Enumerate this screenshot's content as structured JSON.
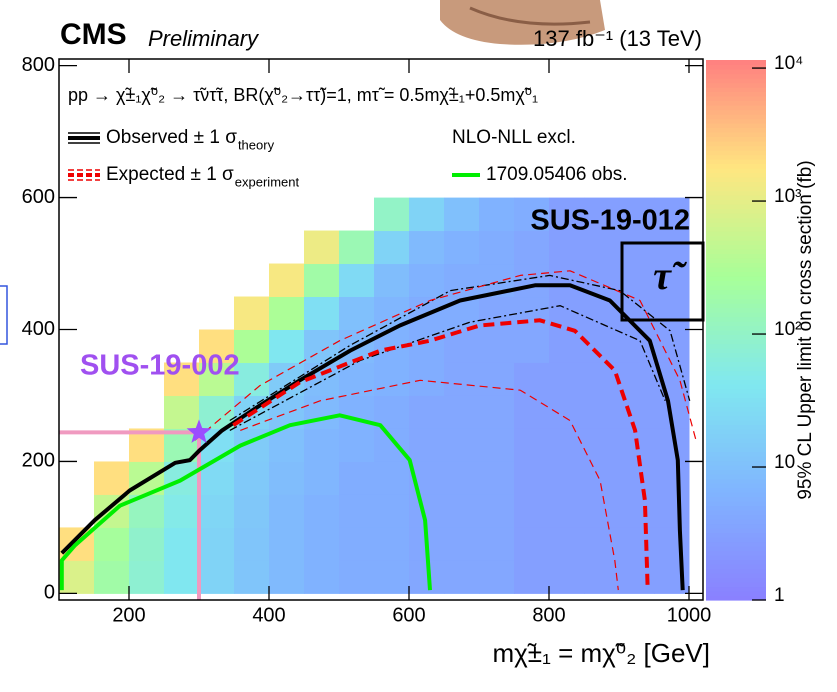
{
  "chart_data": {
    "type": "heatmap-contour",
    "title": "CMS",
    "subtitle": "Preliminary",
    "luminosity": "137 fb⁻¹ (13 TeV)",
    "process": "pp → χ̃±₁χ̃⁰₂ → τ̃ντ̃τ, BR(χ̃⁰₂→ττ̃)=1, mτ̃ = 0.5mχ̃±₁+0.5mχ̃⁰₁",
    "x_label": "mχ̃±₁ = mχ̃⁰₂ [GeV]",
    "legend_header": "NLO-NLL excl.",
    "annotations": [
      "SUS-19-012",
      "τ̃",
      "SUS-19-002"
    ],
    "xlim": [
      100,
      1020
    ],
    "ylim": [
      -10,
      810
    ],
    "xticks": [
      200,
      400,
      600,
      800,
      1000
    ],
    "yticks": [
      0,
      200,
      400,
      600,
      800
    ],
    "colorbar": {
      "label": "95% CL Upper limit on cross section (fb)",
      "log": true,
      "lim": [
        1,
        11500
      ],
      "ticks": [
        {
          "value": 1,
          "label": "1"
        },
        {
          "value": 10,
          "label": "10"
        },
        {
          "value": 100,
          "label": "10²"
        },
        {
          "value": 1000,
          "label": "10³"
        },
        {
          "value": 10000,
          "label": "10⁴"
        }
      ],
      "colors": [
        "#8a80ff",
        "#80b4ff",
        "#80e8f0",
        "#a8ff98",
        "#ffe680",
        "#ff8080"
      ]
    },
    "heatmap": {
      "x": [
        125,
        175,
        225,
        275,
        325,
        375,
        425,
        475,
        525,
        575,
        625,
        675,
        725,
        775,
        825,
        875,
        925,
        975
      ],
      "y": [
        25,
        75,
        125,
        175,
        225,
        275,
        325,
        375,
        425,
        475,
        525,
        575
      ],
      "z": [
        [
          800,
          200,
          80,
          40,
          20,
          12,
          8,
          6,
          5,
          5,
          4,
          4,
          4,
          3,
          3,
          3,
          3,
          3
        ],
        [
          2000,
          250,
          90,
          40,
          20,
          12,
          8,
          6,
          5,
          5,
          4,
          4,
          4,
          3,
          3,
          3,
          3,
          3
        ],
        [
          null,
          500,
          120,
          50,
          22,
          13,
          8,
          6,
          5,
          5,
          4,
          4,
          4,
          3,
          3,
          3,
          3,
          3
        ],
        [
          null,
          2000,
          400,
          60,
          25,
          14,
          9,
          7,
          5,
          5,
          4,
          4,
          4,
          3,
          3,
          3,
          3,
          3
        ],
        [
          null,
          null,
          2000,
          150,
          30,
          15,
          10,
          7,
          6,
          5,
          4,
          4,
          4,
          3,
          3,
          3,
          3,
          3
        ],
        [
          null,
          null,
          null,
          500,
          80,
          20,
          12,
          8,
          6,
          5,
          4,
          4,
          4,
          3,
          3,
          3,
          3,
          3
        ],
        [
          null,
          null,
          null,
          2000,
          400,
          60,
          15,
          9,
          7,
          6,
          5,
          4,
          4,
          3,
          3,
          3,
          3,
          3
        ],
        [
          null,
          null,
          null,
          null,
          2000,
          300,
          40,
          12,
          8,
          6,
          5,
          4,
          4,
          4,
          3,
          3,
          3,
          3
        ],
        [
          null,
          null,
          null,
          null,
          null,
          1500,
          300,
          30,
          10,
          7,
          5,
          5,
          4,
          4,
          3,
          3,
          3,
          3
        ],
        [
          null,
          null,
          null,
          null,
          null,
          null,
          1500,
          200,
          25,
          9,
          6,
          5,
          5,
          4,
          3,
          3,
          3,
          3
        ],
        [
          null,
          null,
          null,
          null,
          null,
          null,
          null,
          1200,
          150,
          20,
          8,
          6,
          5,
          4,
          3,
          3,
          3,
          3
        ],
        [
          null,
          null,
          null,
          null,
          null,
          null,
          null,
          null,
          null,
          100,
          20,
          10,
          6,
          5,
          3,
          3,
          3,
          3
        ]
      ]
    },
    "series": [
      {
        "name": "Observed ± 1 σ",
        "name_sub": "theory",
        "color": "#000000",
        "width": 4,
        "dash": "none",
        "x": [
          104,
          151,
          201,
          266,
          287,
          301,
          333,
          387,
          444,
          516,
          587,
          673,
          780,
          830,
          887,
          944,
          970,
          984,
          987,
          991
        ],
        "y": [
          61,
          111,
          156,
          198,
          202,
          217,
          247,
          285,
          323,
          368,
          406,
          444,
          467,
          467,
          444,
          383,
          292,
          202,
          95,
          5
        ]
      },
      {
        "color": "#000000",
        "width": 1.3,
        "dash": "8,3,2,3",
        "x": [
          344,
          516,
          659,
          801,
          901,
          973,
          1001
        ],
        "y": [
          262,
          376,
          459,
          482,
          459,
          398,
          292
        ]
      },
      {
        "color": "#000000",
        "width": 1.3,
        "dash": "8,3,2,3",
        "x": [
          344,
          530,
          687,
          816,
          930,
          966
        ],
        "y": [
          247,
          353,
          411,
          436,
          383,
          292
        ]
      },
      {
        "name": "Expected ± 1 σ",
        "name_sub": "experiment",
        "color": "#ee0000",
        "width": 4,
        "dash": "11,6",
        "x": [
          349,
          444,
          559,
          630,
          701,
          787,
          837,
          894,
          923,
          937,
          941
        ],
        "y": [
          255,
          320,
          368,
          383,
          406,
          414,
          398,
          338,
          247,
          141,
          5
        ]
      },
      {
        "color": "#ee0000",
        "width": 1.2,
        "dash": "8,5",
        "x": [
          294,
          387,
          501,
          630,
          759,
          830,
          930,
          987,
          1010
        ],
        "y": [
          232,
          315,
          383,
          444,
          482,
          489,
          444,
          323,
          232
        ]
      },
      {
        "color": "#ee0000",
        "width": 1.2,
        "dash": "8,5",
        "x": [
          359,
          473,
          616,
          759,
          830,
          873,
          894,
          899
        ],
        "y": [
          247,
          292,
          323,
          308,
          262,
          171,
          50,
          5
        ]
      },
      {
        "name": "1709.05406 obs.",
        "color": "#00ee00",
        "width": 4,
        "dash": "none",
        "x": [
          104,
          104,
          123,
          187,
          273,
          359,
          430,
          501,
          559,
          601,
          623,
          630
        ],
        "y": [
          5,
          50,
          73,
          133,
          171,
          224,
          255,
          270,
          255,
          202,
          111,
          5
        ]
      }
    ],
    "reference": {
      "x": 300,
      "y": 244,
      "color": "#f09ac0",
      "star_color": "#9b4dff"
    }
  }
}
